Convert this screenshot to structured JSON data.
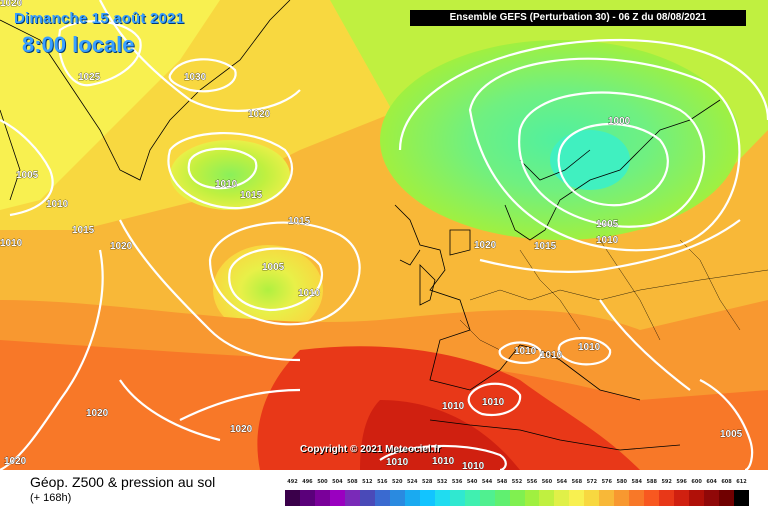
{
  "header": {
    "date": "Dimanche 15 août 2021",
    "local_time": "8:00 locale",
    "run_info": "Ensemble GEFS  (Perturbation 30)  -  06 Z du 08/08/2021"
  },
  "copyright": "Copyright © 2021 Meteociel.fr",
  "footer": {
    "parameter": "Géop. Z500 & pression au sol",
    "lead_time": "(+ 168h)"
  },
  "color_scale": {
    "labels": [
      "492",
      "496",
      "500",
      "504",
      "508",
      "512",
      "516",
      "520",
      "524",
      "528",
      "532",
      "536",
      "540",
      "544",
      "548",
      "552",
      "556",
      "560",
      "564",
      "568",
      "572",
      "576",
      "580",
      "584",
      "588",
      "592",
      "596",
      "600",
      "604",
      "608",
      "612"
    ],
    "colors": [
      "#3a004a",
      "#5a007a",
      "#7a009a",
      "#9a00c0",
      "#7a2ab8",
      "#4a4ab8",
      "#3a6ad0",
      "#2a8ae0",
      "#1aaaf0",
      "#12c4ff",
      "#20dcf0",
      "#30e8d0",
      "#40f0b0",
      "#50f090",
      "#60f070",
      "#80f050",
      "#a0f040",
      "#c0f040",
      "#e0f048",
      "#f8f050",
      "#f8d840",
      "#f8b838",
      "#f89830",
      "#f87828",
      "#f85820",
      "#e83818",
      "#d02010",
      "#b01008",
      "#900808",
      "#700000",
      "#000000"
    ]
  },
  "isobars": [
    {
      "value": "1030"
    },
    {
      "value": "1025"
    },
    {
      "value": "1020"
    },
    {
      "value": "1005"
    },
    {
      "value": "1010"
    },
    {
      "value": "1015"
    },
    {
      "value": "1010"
    },
    {
      "value": "1020"
    },
    {
      "value": "1015"
    },
    {
      "value": "1010"
    },
    {
      "value": "1015"
    },
    {
      "value": "1005"
    },
    {
      "value": "1010"
    },
    {
      "value": "1000"
    },
    {
      "value": "1005"
    },
    {
      "value": "1010"
    },
    {
      "value": "1015"
    },
    {
      "value": "1020"
    },
    {
      "value": "1010"
    },
    {
      "value": "1010"
    },
    {
      "value": "1010"
    },
    {
      "value": "1010"
    },
    {
      "value": "1010"
    },
    {
      "value": "1010"
    },
    {
      "value": "1010"
    },
    {
      "value": "1010"
    },
    {
      "value": "1020"
    },
    {
      "value": "1020"
    },
    {
      "value": "1020"
    },
    {
      "value": "1005"
    },
    {
      "value": "1020"
    },
    {
      "value": "1010"
    }
  ]
}
